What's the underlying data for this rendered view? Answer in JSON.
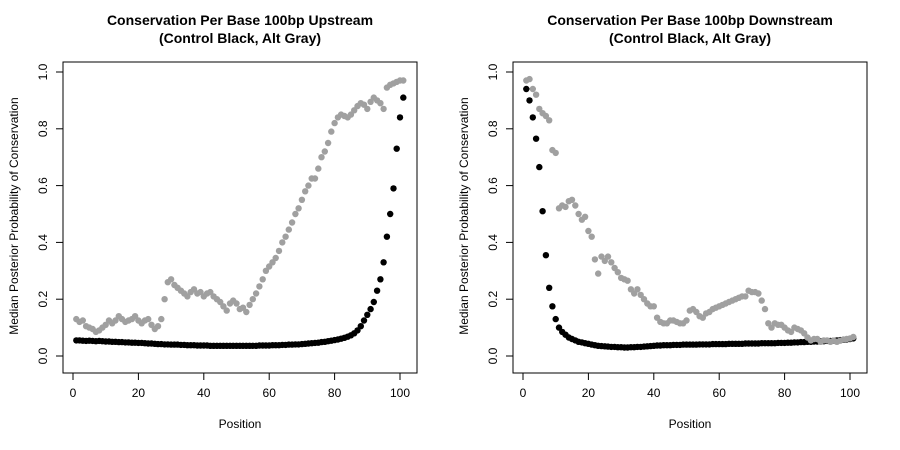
{
  "page": {
    "background": "#FFFFFF",
    "text_color": "#000000"
  },
  "chart_data": [
    {
      "type": "scatter",
      "title": "Conservation Per Base 100bp Upstream",
      "subtitle": "(Control Black, Alt Gray)",
      "xlabel": "Position",
      "ylabel": "Median Posterior Probability of Conservation",
      "xlim": [
        0,
        100
      ],
      "ylim": [
        0.0,
        1.0
      ],
      "grid": false,
      "legend": "none (colors explained in subtitle)",
      "xticks": [
        0,
        20,
        40,
        60,
        80,
        100
      ],
      "yticks": [
        "0.0",
        "0.2",
        "0.4",
        "0.6",
        "0.8",
        "1.0"
      ],
      "x_start": 1,
      "series": [
        {
          "name": "Control",
          "color": "#000000",
          "values": [
            0.055,
            0.055,
            0.054,
            0.053,
            0.054,
            0.053,
            0.052,
            0.053,
            0.052,
            0.051,
            0.051,
            0.05,
            0.05,
            0.049,
            0.049,
            0.048,
            0.048,
            0.047,
            0.047,
            0.046,
            0.046,
            0.045,
            0.044,
            0.044,
            0.043,
            0.042,
            0.042,
            0.041,
            0.041,
            0.04,
            0.04,
            0.04,
            0.039,
            0.039,
            0.038,
            0.038,
            0.038,
            0.037,
            0.037,
            0.037,
            0.037,
            0.036,
            0.036,
            0.036,
            0.036,
            0.036,
            0.036,
            0.036,
            0.036,
            0.036,
            0.036,
            0.036,
            0.036,
            0.036,
            0.036,
            0.036,
            0.037,
            0.037,
            0.037,
            0.037,
            0.038,
            0.038,
            0.038,
            0.039,
            0.039,
            0.04,
            0.04,
            0.041,
            0.041,
            0.042,
            0.043,
            0.044,
            0.045,
            0.046,
            0.047,
            0.049,
            0.05,
            0.052,
            0.054,
            0.056,
            0.058,
            0.061,
            0.064,
            0.068,
            0.073,
            0.08,
            0.09,
            0.105,
            0.125,
            0.145,
            0.165,
            0.19,
            0.23,
            0.27,
            0.33,
            0.42,
            0.5,
            0.59,
            0.73,
            0.84,
            0.91
          ]
        },
        {
          "name": "Alt",
          "color": "#A0A0A0",
          "values": [
            0.13,
            0.12,
            0.125,
            0.105,
            0.1,
            0.095,
            0.085,
            0.09,
            0.1,
            0.11,
            0.125,
            0.115,
            0.125,
            0.14,
            0.13,
            0.12,
            0.125,
            0.13,
            0.14,
            0.125,
            0.115,
            0.125,
            0.13,
            0.11,
            0.095,
            0.105,
            0.13,
            0.2,
            0.26,
            0.27,
            0.25,
            0.24,
            0.23,
            0.22,
            0.21,
            0.225,
            0.235,
            0.22,
            0.225,
            0.21,
            0.22,
            0.225,
            0.21,
            0.2,
            0.19,
            0.175,
            0.16,
            0.185,
            0.195,
            0.185,
            0.165,
            0.17,
            0.155,
            0.18,
            0.2,
            0.22,
            0.245,
            0.27,
            0.3,
            0.315,
            0.33,
            0.345,
            0.37,
            0.4,
            0.42,
            0.445,
            0.47,
            0.5,
            0.52,
            0.55,
            0.58,
            0.6,
            0.625,
            0.625,
            0.66,
            0.7,
            0.72,
            0.75,
            0.79,
            0.82,
            0.84,
            0.85,
            0.845,
            0.84,
            0.85,
            0.865,
            0.88,
            0.89,
            0.885,
            0.87,
            0.895,
            0.91,
            0.9,
            0.89,
            0.87,
            0.945,
            0.955,
            0.96,
            0.965,
            0.97,
            0.97
          ]
        }
      ]
    },
    {
      "type": "scatter",
      "title": "Conservation Per Base 100bp Downstream",
      "subtitle": "(Control Black, Alt Gray)",
      "xlabel": "Position",
      "ylabel": "Median Posterior Probability of Conservation",
      "xlim": [
        0,
        100
      ],
      "ylim": [
        0.0,
        1.0
      ],
      "grid": false,
      "legend": "none (colors explained in subtitle)",
      "xticks": [
        0,
        20,
        40,
        60,
        80,
        100
      ],
      "yticks": [
        "0.0",
        "0.2",
        "0.4",
        "0.6",
        "0.8",
        "1.0"
      ],
      "x_start": 1,
      "series": [
        {
          "name": "Control",
          "color": "#000000",
          "values": [
            0.94,
            0.9,
            0.84,
            0.765,
            0.665,
            0.51,
            0.355,
            0.24,
            0.175,
            0.13,
            0.1,
            0.085,
            0.075,
            0.065,
            0.06,
            0.055,
            0.05,
            0.048,
            0.045,
            0.043,
            0.04,
            0.038,
            0.036,
            0.035,
            0.034,
            0.033,
            0.032,
            0.032,
            0.031,
            0.031,
            0.03,
            0.03,
            0.031,
            0.031,
            0.032,
            0.032,
            0.033,
            0.034,
            0.035,
            0.036,
            0.037,
            0.037,
            0.038,
            0.038,
            0.038,
            0.039,
            0.039,
            0.039,
            0.04,
            0.04,
            0.04,
            0.04,
            0.04,
            0.041,
            0.041,
            0.041,
            0.041,
            0.042,
            0.042,
            0.042,
            0.042,
            0.042,
            0.043,
            0.043,
            0.043,
            0.043,
            0.043,
            0.044,
            0.044,
            0.044,
            0.044,
            0.044,
            0.045,
            0.045,
            0.045,
            0.045,
            0.045,
            0.046,
            0.046,
            0.046,
            0.047,
            0.047,
            0.048,
            0.048,
            0.049,
            0.049,
            0.05,
            0.05,
            0.051,
            0.051,
            0.052,
            0.052,
            0.053,
            0.053,
            0.054,
            0.055,
            0.056,
            0.057,
            0.058,
            0.06,
            0.062
          ]
        },
        {
          "name": "Alt",
          "color": "#A0A0A0",
          "values": [
            0.97,
            0.975,
            0.94,
            0.92,
            0.87,
            0.855,
            0.845,
            0.83,
            0.725,
            0.715,
            0.52,
            0.53,
            0.525,
            0.545,
            0.55,
            0.53,
            0.5,
            0.48,
            0.49,
            0.44,
            0.42,
            0.34,
            0.29,
            0.35,
            0.335,
            0.35,
            0.33,
            0.31,
            0.295,
            0.275,
            0.27,
            0.265,
            0.235,
            0.22,
            0.235,
            0.215,
            0.2,
            0.185,
            0.175,
            0.175,
            0.135,
            0.12,
            0.115,
            0.115,
            0.125,
            0.125,
            0.12,
            0.115,
            0.115,
            0.125,
            0.16,
            0.165,
            0.155,
            0.14,
            0.135,
            0.15,
            0.155,
            0.165,
            0.17,
            0.175,
            0.18,
            0.185,
            0.19,
            0.195,
            0.2,
            0.205,
            0.21,
            0.21,
            0.23,
            0.225,
            0.225,
            0.22,
            0.195,
            0.165,
            0.115,
            0.1,
            0.115,
            0.11,
            0.11,
            0.1,
            0.09,
            0.085,
            0.1,
            0.095,
            0.09,
            0.08,
            0.065,
            0.055,
            0.06,
            0.06,
            0.05,
            0.055,
            0.055,
            0.05,
            0.054,
            0.05,
            0.054,
            0.058,
            0.06,
            0.062,
            0.067
          ]
        }
      ]
    }
  ]
}
